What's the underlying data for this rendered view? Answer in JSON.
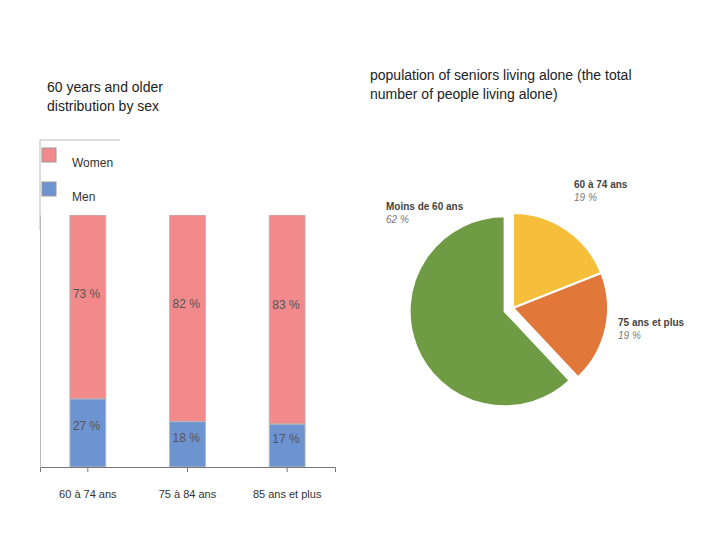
{
  "chart_data": [
    {
      "type": "bar",
      "title": "60 years and older distribution by sex",
      "categories": [
        "60 à 74 ans",
        "75 à 84 ans",
        "85 ans et plus"
      ],
      "series": [
        {
          "name": "Women",
          "color": "#f28a8c",
          "values": [
            73,
            82,
            83
          ],
          "value_labels": [
            "73 %",
            "82 %",
            "83 %"
          ]
        },
        {
          "name": "Men",
          "color": "#6d93d1",
          "values": [
            27,
            18,
            17
          ],
          "value_labels": [
            "27 %",
            "18 %",
            "17 %"
          ]
        }
      ],
      "ylim": [
        0,
        100
      ],
      "stacked": true,
      "data_labels": true,
      "tick_labels": "x",
      "legend": "upper left"
    },
    {
      "type": "pie",
      "title": "population of seniors living alone (the total number of people living alone)",
      "categories": [
        "60 à 74 ans",
        "75 ans et plus",
        "Moins de 60 ans"
      ],
      "values": [
        19,
        19,
        62
      ],
      "value_labels": [
        "19 %",
        "19 %",
        "62 %"
      ],
      "colors": [
        "#f5bf3c",
        "#e2773a",
        "#6f9b45"
      ],
      "data_labels": true
    }
  ]
}
